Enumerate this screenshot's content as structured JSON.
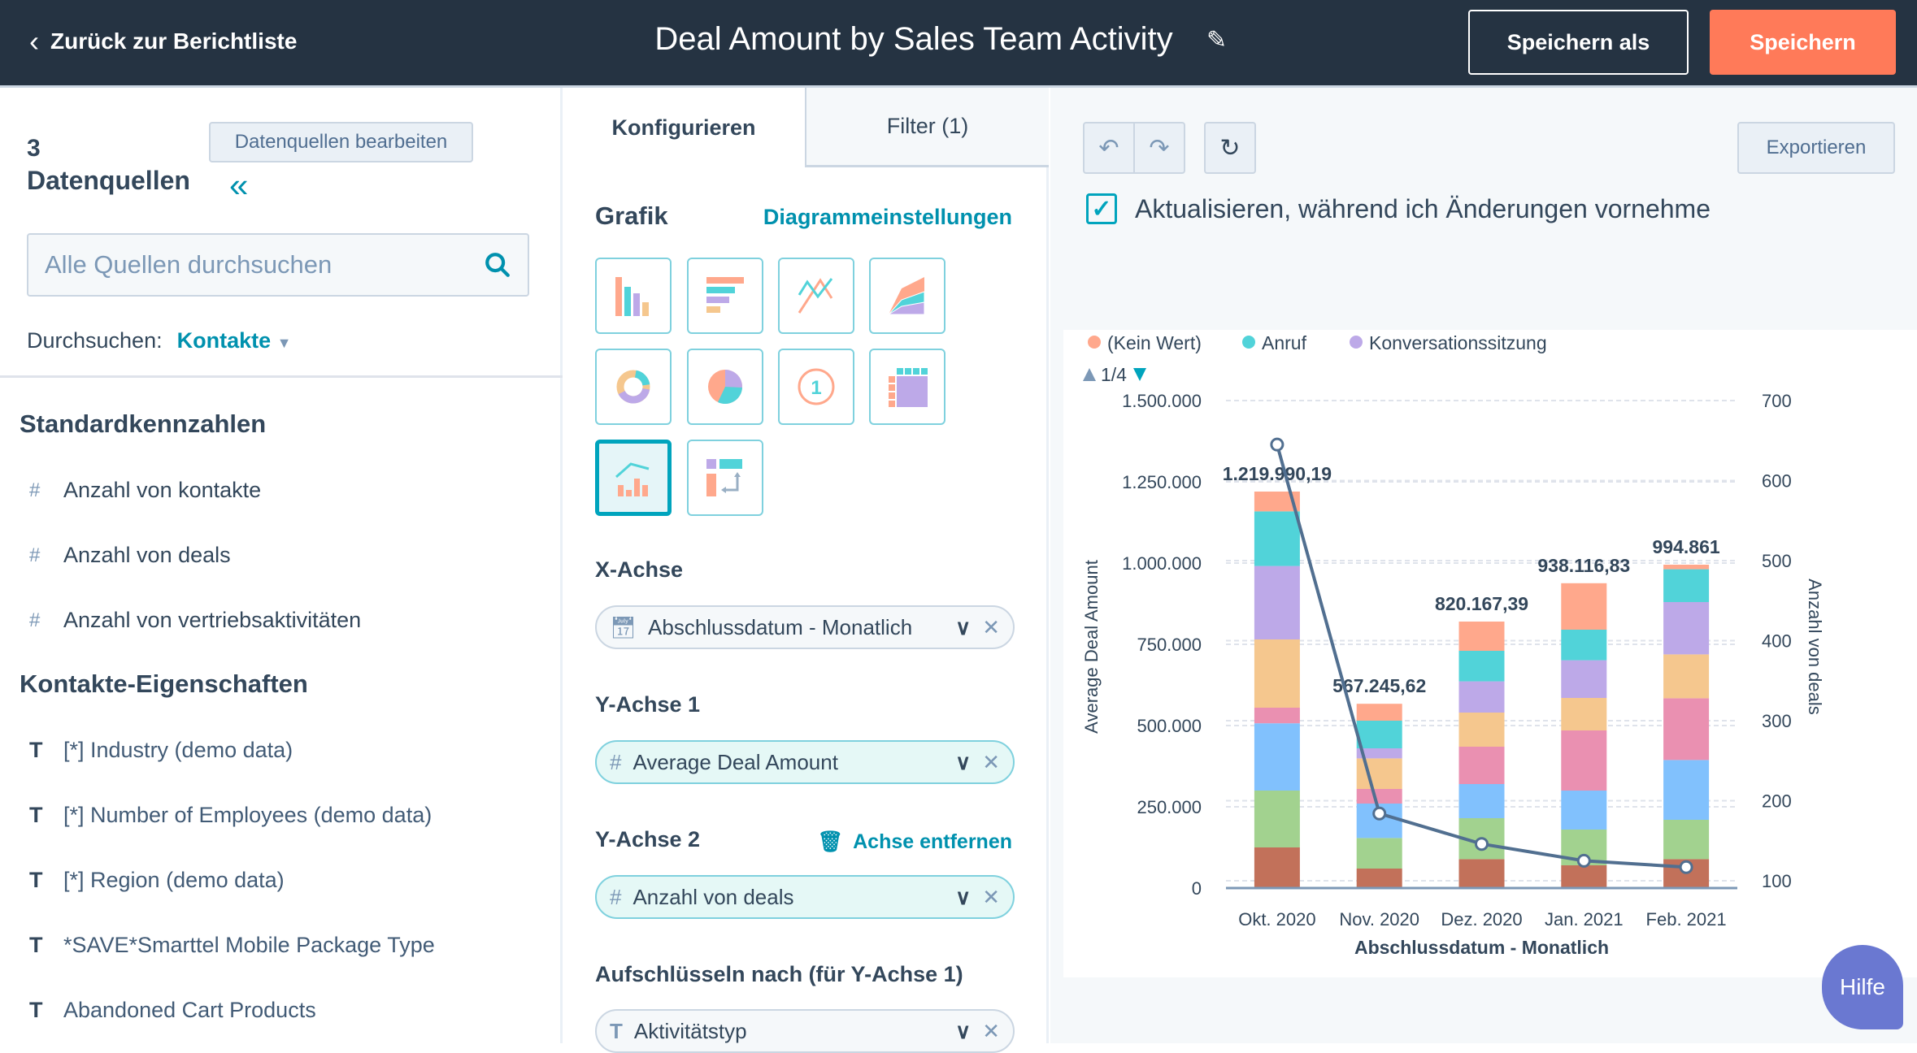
{
  "header": {
    "back_label": "Zurück zur Berichtliste",
    "title": "Deal Amount by Sales Team Activity",
    "save_as_label": "Speichern als",
    "save_label": "Speichern"
  },
  "left": {
    "source_count": "3",
    "source_label": "Datenquellen",
    "edit_sources_label": "Datenquellen bearbeiten",
    "search_placeholder": "Alle Quellen durchsuchen",
    "browse_label": "Durchsuchen:",
    "browse_value": "Kontakte",
    "standard_heading": "Standardkennzahlen",
    "standard_items": [
      {
        "type": "#",
        "label": "Anzahl von kontakte"
      },
      {
        "type": "#",
        "label": "Anzahl von deals"
      },
      {
        "type": "#",
        "label": "Anzahl von vertriebsaktivitäten"
      }
    ],
    "props_heading": "Kontakte-Eigenschaften",
    "props_items": [
      {
        "type": "T",
        "label": "[*] Industry (demo data)"
      },
      {
        "type": "T",
        "label": "[*] Number of Employees (demo data)"
      },
      {
        "type": "T",
        "label": "[*] Region (demo data)"
      },
      {
        "type": "T",
        "label": "*SAVE*Smarttel Mobile Package Type"
      },
      {
        "type": "T",
        "label": "Abandoned Cart Products"
      }
    ]
  },
  "mid": {
    "tab_configure": "Konfigurieren",
    "tab_filter": "Filter (1)",
    "graphic_label": "Grafik",
    "chart_settings_link": "Diagrammeinstellungen",
    "chart_types": [
      "vertical-bar",
      "horizontal-bar",
      "line",
      "area",
      "donut",
      "pie",
      "kpi",
      "table",
      "combo",
      "pivot"
    ],
    "selected_chart_type": "combo",
    "x_axis_label": "X-Achse",
    "x_axis_value": "Abschlussdatum - Monatlich",
    "y1_label": "Y-Achse 1",
    "y1_value": "Average Deal Amount",
    "y2_label": "Y-Achse 2",
    "y2_remove": "Achse entfernen",
    "y2_value": "Anzahl von deals",
    "breakdown_label": "Aufschlüsseln nach (für Y-Achse 1)",
    "breakdown_value": "Aktivitätstyp"
  },
  "right": {
    "export_label": "Exportieren",
    "auto_update_label": "Aktualisieren, während ich Änderungen vornehme",
    "auto_update_checked": true,
    "help_label": "Hilfe"
  },
  "chart_data": {
    "type": "bar",
    "categories": [
      "Okt. 2020",
      "Nov. 2020",
      "Dez. 2020",
      "Jan. 2021",
      "Feb. 2021"
    ],
    "xlabel": "Abschlussdatum - Monatlich",
    "ylabel": "Average Deal Amount",
    "y2label": "Anzahl von deals",
    "ylim": [
      0,
      1500000
    ],
    "y2lim": [
      100,
      700
    ],
    "yticks": [
      "0",
      "250.000",
      "500.000",
      "750.000",
      "1.000.000",
      "1.250.000",
      "1.500.000"
    ],
    "y2ticks": [
      "100",
      "200",
      "300",
      "400",
      "500",
      "600",
      "700"
    ],
    "legend": {
      "items": [
        {
          "name": "(Kein Wert)",
          "color": "#ffa88c"
        },
        {
          "name": "Anruf",
          "color": "#51d3d9"
        },
        {
          "name": "Konversationssitzung",
          "color": "#bda9e8"
        }
      ],
      "page": "1/4",
      "placement": "top-left"
    },
    "stacked_series": [
      {
        "color": "#c2715a",
        "values": [
          125000,
          60000,
          89000,
          70000,
          89000
        ]
      },
      {
        "color": "#a2d28f",
        "values": [
          175000,
          94000,
          126000,
          110000,
          121000
        ]
      },
      {
        "color": "#81c1fd",
        "values": [
          207000,
          106000,
          105000,
          120000,
          184000
        ]
      },
      {
        "color": "#ea90b1",
        "values": [
          48000,
          45000,
          115000,
          185000,
          190000
        ]
      },
      {
        "color": "#f5c78e",
        "values": [
          210000,
          94000,
          105000,
          100000,
          135000
        ]
      },
      {
        "name": "Konversationssitzung",
        "color": "#bda9e8",
        "values": [
          226000,
          31000,
          96000,
          116000,
          161000
        ]
      },
      {
        "name": "Anruf",
        "color": "#51d3d9",
        "values": [
          168000,
          85000,
          94000,
          94000,
          101000
        ]
      },
      {
        "name": "(Kein Wert)",
        "color": "#ffa88c",
        "values": [
          61000,
          52000,
          90000,
          143000,
          14000
        ]
      }
    ],
    "totals": [
      "1.219.990,19",
      "567.245,62",
      "820.167,39",
      "938.116,83",
      "994.861"
    ],
    "line_series": {
      "name": "Anzahl von deals",
      "color": "#516f90",
      "values": [
        645,
        184,
        146,
        125,
        117
      ]
    },
    "grid": true
  }
}
